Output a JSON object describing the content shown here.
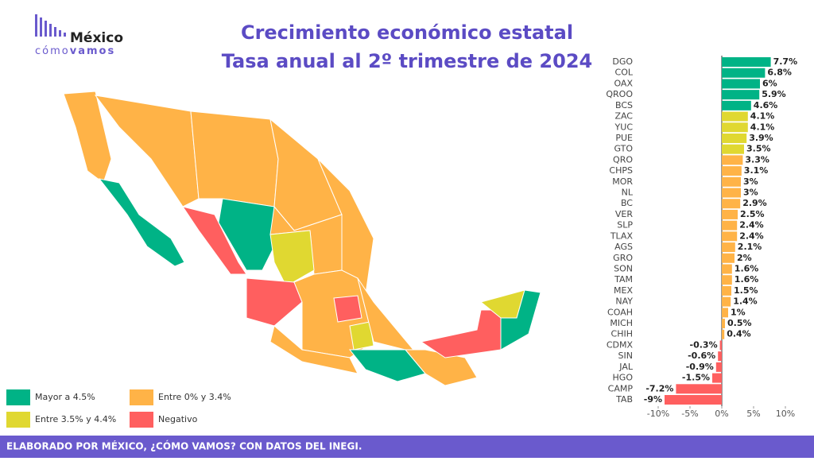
{
  "logo": {
    "line1": "México",
    "line2a": "cómo",
    "line2b": "vamos"
  },
  "chart_data": {
    "type": "bar",
    "orientation": "horizontal",
    "title": "Crecimiento económico estatal",
    "subtitle": "Tasa anual al 2º trimestre de 2024",
    "categories": [
      "DGO",
      "COL",
      "OAX",
      "QROO",
      "BCS",
      "ZAC",
      "YUC",
      "PUE",
      "GTO",
      "QRO",
      "CHPS",
      "MOR",
      "NL",
      "BC",
      "VER",
      "SLP",
      "TLAX",
      "AGS",
      "GRO",
      "SON",
      "TAM",
      "MEX",
      "NAY",
      "COAH",
      "MICH",
      "CHIH",
      "CDMX",
      "SIN",
      "JAL",
      "HGO",
      "CAMP",
      "TAB"
    ],
    "values": [
      7.7,
      6.8,
      6,
      5.9,
      4.6,
      4.1,
      4.1,
      3.9,
      3.5,
      3.3,
      3.1,
      3,
      3,
      2.9,
      2.5,
      2.4,
      2.4,
      2.1,
      2,
      1.6,
      1.6,
      1.5,
      1.4,
      1,
      0.5,
      0.4,
      -0.3,
      -0.6,
      -0.9,
      -1.5,
      -7.2,
      -9
    ],
    "value_labels": [
      "7.7%",
      "6.8%",
      "6%",
      "5.9%",
      "4.6%",
      "4.1%",
      "4.1%",
      "3.9%",
      "3.5%",
      "3.3%",
      "3.1%",
      "3%",
      "3%",
      "2.9%",
      "2.5%",
      "2.4%",
      "2.4%",
      "2.1%",
      "2%",
      "1.6%",
      "1.6%",
      "1.5%",
      "1.4%",
      "1%",
      "0.5%",
      "0.4%",
      "-0.3%",
      "-0.6%",
      "-0.9%",
      "-1.5%",
      "-7.2%",
      "-9%"
    ],
    "colors": [
      "#00b386",
      "#00b386",
      "#00b386",
      "#00b386",
      "#00b386",
      "#e0d831",
      "#e0d831",
      "#e0d831",
      "#e0d831",
      "#ffb347",
      "#ffb347",
      "#ffb347",
      "#ffb347",
      "#ffb347",
      "#ffb347",
      "#ffb347",
      "#ffb347",
      "#ffb347",
      "#ffb347",
      "#ffb347",
      "#ffb347",
      "#ffb347",
      "#ffb347",
      "#ffb347",
      "#ffb347",
      "#ffb347",
      "#ff5f5f",
      "#ff5f5f",
      "#ff5f5f",
      "#ff5f5f",
      "#ff5f5f",
      "#ff5f5f"
    ],
    "xlim": [
      -11,
      12
    ],
    "xticks": [
      {
        "value": -10,
        "label": "-10%"
      },
      {
        "value": -5,
        "label": "-5%"
      },
      {
        "value": 0,
        "label": "0%"
      },
      {
        "value": 5,
        "label": "5%"
      },
      {
        "value": 10,
        "label": "10%"
      }
    ],
    "legend": [
      {
        "label": "Mayor a 4.5%",
        "color": "#00b386"
      },
      {
        "label": "Entre 0% y 3.4%",
        "color": "#ffb347"
      },
      {
        "label": "Entre 3.5% y 4.4%",
        "color": "#e0d831"
      },
      {
        "label": "Negativo",
        "color": "#ff5f5f"
      }
    ]
  },
  "footer": "ELABORADO POR MÉXICO, ¿CÓMO VAMOS? CON DATOS DEL INEGI."
}
